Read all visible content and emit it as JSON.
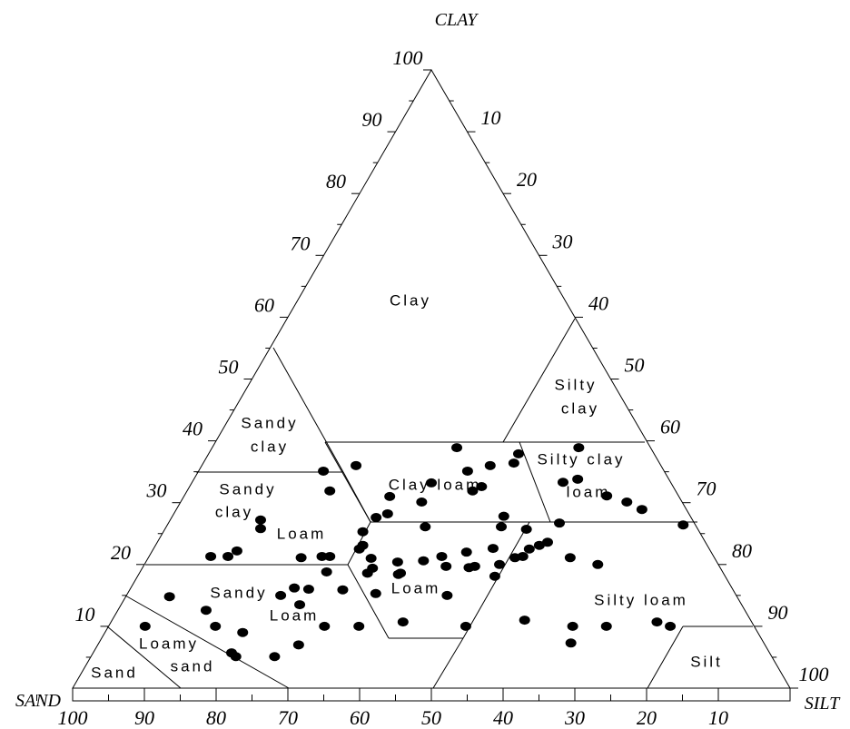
{
  "chart_data": {
    "type": "ternary",
    "axes": {
      "clay": {
        "title": "CLAY",
        "lim": [
          0,
          100
        ],
        "ticks": [
          10,
          20,
          30,
          40,
          50,
          60,
          70,
          80,
          90,
          100
        ]
      },
      "silt": {
        "title": "SILT",
        "lim": [
          0,
          100
        ],
        "ticks": [
          10,
          20,
          30,
          40,
          50,
          60,
          70,
          80,
          90,
          100
        ]
      },
      "sand": {
        "title": "SAND",
        "lim": [
          0,
          100
        ],
        "ticks": [
          100,
          90,
          80,
          70,
          60,
          50,
          40,
          30,
          20,
          10
        ]
      }
    },
    "region_labels": [
      [
        "Clay"
      ],
      [
        "Silty",
        "clay"
      ],
      [
        "Sandy",
        "clay"
      ],
      [
        "Clay loam"
      ],
      [
        "Silty clay",
        "loam"
      ],
      [
        "Sandy",
        "clay",
        "Loam"
      ],
      [
        "Loam"
      ],
      [
        "Sandy",
        "Loam"
      ],
      [
        "Loamy",
        "sand"
      ],
      [
        "Sand"
      ],
      [
        "Silty loam"
      ],
      [
        "Silt"
      ]
    ],
    "series": [
      {
        "color": "#000000",
        "sand": [
          27,
          42.5,
          47.5,
          48.2,
          33.4,
          27.4,
          28.3,
          23.8,
          26.7,
          40.3,
          36.3,
          18.9,
          20.3,
          10,
          15,
          12.7,
          10,
          7.7,
          6.2,
          1.7,
          18.8,
          22,
          23.4,
          26,
          27.2,
          23.9,
          25.1,
          26.6,
          27.8,
          20.1,
          16.8,
          30.1,
          32.1,
          30.5,
          34.1,
          35,
          34.1,
          38.1,
          37.9,
          40.8,
          37.8,
          44.5,
          42,
          43.9,
          46.9,
          48,
          48.8,
          47.9,
          48.5,
          49.6,
          50.1,
          45.4,
          45,
          40.3,
          48.6,
          40.2,
          54.6,
          57.6,
          53.5,
          55.2,
          60.2,
          60.9,
          66,
          67.7,
          70.1,
          63.5,
          61,
          59.1,
          54.4,
          61.6,
          59.9,
          55.1,
          79.1,
          75.1,
          75.1,
          84.9,
          71.8,
          75,
          74.7,
          69.3,
          65,
          31.5,
          25.3,
          20.6,
          26.9,
          13.2,
          11.7
        ],
        "clay": [
          38.9,
          36,
          35.1,
          31.9,
          33.2,
          35.1,
          31.9,
          36,
          32.6,
          31,
          30.1,
          37.9,
          36.4,
          38.9,
          33.3,
          33.8,
          31.1,
          30.1,
          28.9,
          26.4,
          26.7,
          23.6,
          23.1,
          27.8,
          26.1,
          25.7,
          22.5,
          21.3,
          21.1,
          21.1,
          20,
          22.6,
          18.1,
          20,
          19.7,
          19.5,
          22,
          19.7,
          21.3,
          20.6,
          26.1,
          20.4,
          28.2,
          27.6,
          25.3,
          23.1,
          22.5,
          21,
          19.4,
          18.6,
          15.3,
          18.4,
          18.6,
          15,
          10.7,
          10,
          21.3,
          21.1,
          21.3,
          18.8,
          27.2,
          25.8,
          22.2,
          21.3,
          21.3,
          15,
          16.2,
          16,
          15.9,
          13.5,
          10,
          10,
          14.8,
          12.6,
          10,
          10,
          9,
          5.7,
          5.1,
          5.1,
          7,
          11,
          10,
          10,
          7.3,
          10.7,
          10
        ]
      }
    ]
  }
}
